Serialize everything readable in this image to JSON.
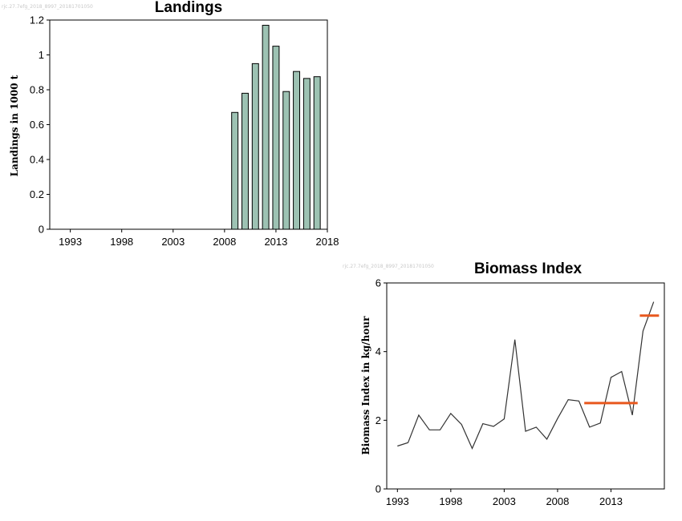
{
  "chart_data": [
    {
      "type": "bar",
      "title": "Landings",
      "watermark": "rjc.27.7efg_2018_8997_20181701050",
      "ylabel": "Landings in 1000 t",
      "xlabel": "",
      "xlim": [
        1991,
        2018
      ],
      "ylim": [
        0,
        1.2
      ],
      "xticks": [
        "1993",
        "1998",
        "2003",
        "2008",
        "2013",
        "2018"
      ],
      "yticks": [
        "0",
        "0.2",
        "0.4",
        "0.6",
        "0.8",
        "1",
        "1.2"
      ],
      "bar_color": "#9dc2b3",
      "categories": [
        "2009",
        "2010",
        "2011",
        "2012",
        "2013",
        "2014",
        "2015",
        "2016",
        "2017"
      ],
      "values": [
        0.67,
        0.78,
        0.95,
        1.17,
        1.05,
        0.79,
        0.905,
        0.865,
        0.875
      ]
    },
    {
      "type": "line",
      "title": "Biomass Index",
      "watermark": "rjc.27.7efg_2018_8997_20181701050",
      "ylabel": "Biomass Index in kg/hour",
      "xlabel": "",
      "xlim": [
        1992,
        2018
      ],
      "ylim": [
        0,
        6
      ],
      "xticks": [
        "1993",
        "1998",
        "2003",
        "2008",
        "2013"
      ],
      "yticks": [
        "0",
        "2",
        "4",
        "6"
      ],
      "line_color": "#333333",
      "mean_color": "#e8581e",
      "x": [
        1993,
        1994,
        1995,
        1996,
        1997,
        1998,
        1999,
        2000,
        2001,
        2002,
        2003,
        2004,
        2005,
        2006,
        2007,
        2008,
        2009,
        2010,
        2011,
        2012,
        2013,
        2014,
        2015,
        2016,
        2017
      ],
      "y": [
        1.25,
        1.35,
        2.15,
        1.72,
        1.72,
        2.2,
        1.88,
        1.18,
        1.9,
        1.82,
        2.04,
        4.35,
        1.68,
        1.8,
        1.45,
        2.05,
        2.6,
        2.56,
        1.8,
        1.92,
        3.25,
        3.42,
        2.15,
        4.6,
        5.45
      ],
      "mean_lines": [
        {
          "x": [
            2010.5,
            2015.5
          ],
          "y": 2.5
        },
        {
          "x": [
            2015.7,
            2017.5
          ],
          "y": 5.05
        }
      ]
    }
  ]
}
